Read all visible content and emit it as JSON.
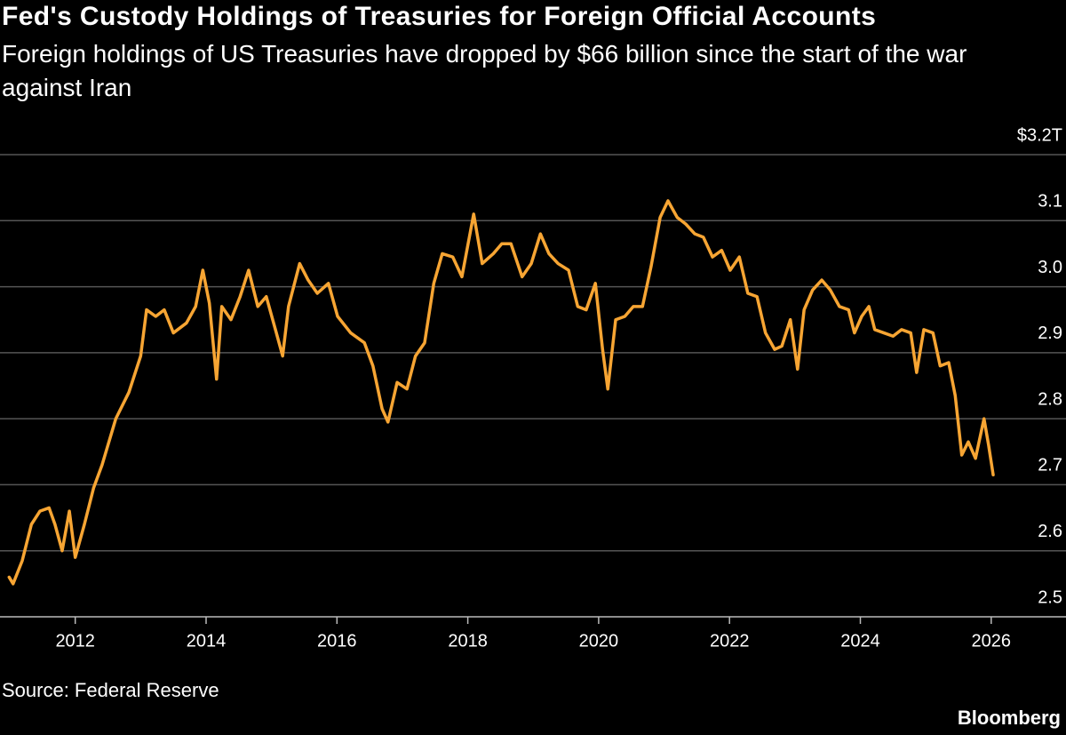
{
  "chart_data": {
    "type": "line",
    "title": "Fed's Custody Holdings of Treasuries for Foreign Official Accounts",
    "subtitle": "Foreign holdings of US Treasuries have dropped by $66 billion since the start of the war against Iran",
    "source": "Source: Federal Reserve",
    "brand": "Bloomberg",
    "color": "#f7a533",
    "x": [
      2010.99,
      2011.05,
      2011.19,
      2011.33,
      2011.46,
      2011.6,
      2011.69,
      2011.8,
      2011.91,
      2012.0,
      2012.14,
      2012.28,
      2012.41,
      2012.62,
      2012.82,
      2013.0,
      2013.09,
      2013.23,
      2013.36,
      2013.5,
      2013.7,
      2013.84,
      2013.95,
      2014.05,
      2014.16,
      2014.24,
      2014.38,
      2014.52,
      2014.65,
      2014.79,
      2014.92,
      2015.06,
      2015.17,
      2015.26,
      2015.43,
      2015.56,
      2015.7,
      2015.87,
      2016.01,
      2016.21,
      2016.42,
      2016.55,
      2016.69,
      2016.78,
      2016.92,
      2017.07,
      2017.2,
      2017.34,
      2017.48,
      2017.61,
      2017.77,
      2017.91,
      2018.09,
      2018.22,
      2018.39,
      2018.52,
      2018.66,
      2018.83,
      2018.97,
      2019.11,
      2019.24,
      2019.38,
      2019.54,
      2019.68,
      2019.81,
      2019.95,
      2020.06,
      2020.14,
      2020.26,
      2020.4,
      2020.53,
      2020.67,
      2020.8,
      2020.94,
      2021.06,
      2021.2,
      2021.33,
      2021.47,
      2021.6,
      2021.74,
      2021.88,
      2022.01,
      2022.15,
      2022.28,
      2022.42,
      2022.55,
      2022.69,
      2022.8,
      2022.93,
      2023.04,
      2023.14,
      2023.27,
      2023.41,
      2023.54,
      2023.68,
      2023.82,
      2023.91,
      2024.02,
      2024.13,
      2024.22,
      2024.36,
      2024.5,
      2024.63,
      2024.77,
      2024.86,
      2024.97,
      2025.11,
      2025.22,
      2025.35,
      2025.45,
      2025.55,
      2025.65,
      2025.76,
      2025.89,
      2025.96,
      2026.03
    ],
    "values": [
      2.56,
      2.55,
      2.585,
      2.64,
      2.66,
      2.665,
      2.64,
      2.6,
      2.66,
      2.59,
      2.64,
      2.695,
      2.73,
      2.8,
      2.84,
      2.895,
      2.965,
      2.955,
      2.965,
      2.93,
      2.945,
      2.97,
      3.025,
      2.975,
      2.86,
      2.97,
      2.95,
      2.985,
      3.025,
      2.97,
      2.985,
      2.935,
      2.895,
      2.97,
      3.035,
      3.01,
      2.99,
      3.005,
      2.955,
      2.93,
      2.915,
      2.88,
      2.815,
      2.795,
      2.855,
      2.845,
      2.895,
      2.915,
      3.005,
      3.05,
      3.045,
      3.015,
      3.11,
      3.035,
      3.05,
      3.065,
      3.065,
      3.015,
      3.035,
      3.08,
      3.05,
      3.035,
      3.025,
      2.97,
      2.965,
      3.005,
      2.905,
      2.845,
      2.95,
      2.955,
      2.97,
      2.97,
      3.03,
      3.105,
      3.13,
      3.105,
      3.095,
      3.08,
      3.075,
      3.045,
      3.055,
      3.025,
      3.045,
      2.99,
      2.985,
      2.93,
      2.905,
      2.91,
      2.95,
      2.875,
      2.965,
      2.995,
      3.01,
      2.995,
      2.97,
      2.965,
      2.93,
      2.955,
      2.97,
      2.935,
      2.93,
      2.925,
      2.935,
      2.93,
      2.87,
      2.935,
      2.93,
      2.88,
      2.885,
      2.835,
      2.745,
      2.765,
      2.74,
      2.8,
      2.76,
      2.715
    ],
    "xlim": [
      2010.85,
      2026.6
    ],
    "xticks": [
      2012,
      2014,
      2016,
      2018,
      2020,
      2022,
      2024,
      2026
    ],
    "ylim": [
      2.5,
      3.2
    ],
    "yticks": [
      2.5,
      2.6,
      2.7,
      2.8,
      2.9,
      {
        "value": 3,
        "label": "3.0"
      },
      3.1,
      {
        "value": 3.2,
        "label": "$3.2T"
      }
    ],
    "grid": true
  }
}
